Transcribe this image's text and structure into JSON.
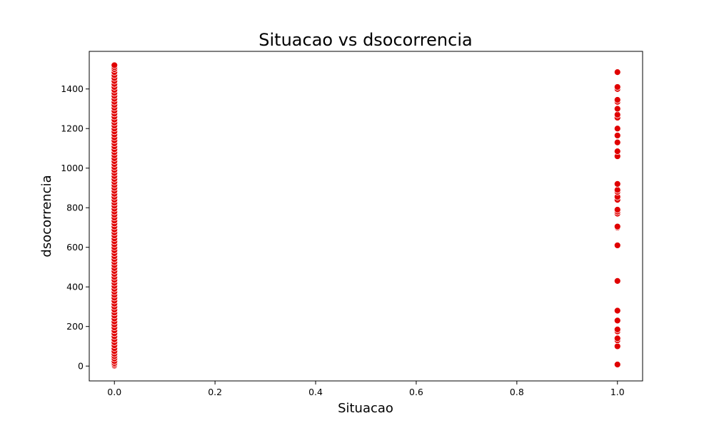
{
  "chart_data": {
    "type": "scatter",
    "title": "Situacao vs dsocorrencia",
    "xlabel": "Situacao",
    "ylabel": "dsocorrencia",
    "xlim": [
      -0.05,
      1.05
    ],
    "ylim": [
      -75,
      1590
    ],
    "x_ticks": [
      "0.0",
      "0.2",
      "0.4",
      "0.6",
      "0.8",
      "1.0"
    ],
    "x_tick_values": [
      0.0,
      0.2,
      0.4,
      0.6,
      0.8,
      1.0
    ],
    "y_ticks": [
      "0",
      "200",
      "400",
      "600",
      "800",
      "1000",
      "1200",
      "1400"
    ],
    "y_tick_values": [
      0,
      200,
      400,
      600,
      800,
      1000,
      1200,
      1400
    ],
    "marker_color": "#e00000",
    "marker_edge_color": "#ffffff",
    "grid": false,
    "series": [
      {
        "x": 0,
        "y": [
          2,
          8,
          15,
          25,
          38,
          50,
          62,
          75,
          90,
          105,
          120,
          135,
          150,
          165,
          180,
          195,
          210,
          225,
          240,
          255,
          270,
          285,
          300,
          315,
          330,
          345,
          360,
          375,
          390,
          405,
          420,
          435,
          450,
          465,
          480,
          495,
          510,
          525,
          540,
          555,
          570,
          585,
          600,
          615,
          630,
          645,
          660,
          675,
          690,
          705,
          720,
          735,
          750,
          765,
          780,
          795,
          810,
          825,
          840,
          855,
          870,
          885,
          900,
          915,
          930,
          945,
          960,
          975,
          990,
          1005,
          1020,
          1035,
          1050,
          1065,
          1080,
          1095,
          1110,
          1125,
          1140,
          1155,
          1170,
          1185,
          1200,
          1215,
          1230,
          1245,
          1260,
          1275,
          1290,
          1305,
          1320,
          1335,
          1350,
          1365,
          1380,
          1395,
          1410,
          1425,
          1440,
          1455,
          1470,
          1485,
          1500,
          1510,
          1520
        ]
      },
      {
        "x": 1,
        "y": [
          8,
          100,
          130,
          140,
          175,
          185,
          230,
          280,
          430,
          610,
          700,
          705,
          770,
          780,
          790,
          840,
          855,
          880,
          890,
          920,
          1060,
          1085,
          1130,
          1165,
          1200,
          1255,
          1270,
          1300,
          1335,
          1345,
          1400,
          1410,
          1485
        ]
      }
    ]
  }
}
